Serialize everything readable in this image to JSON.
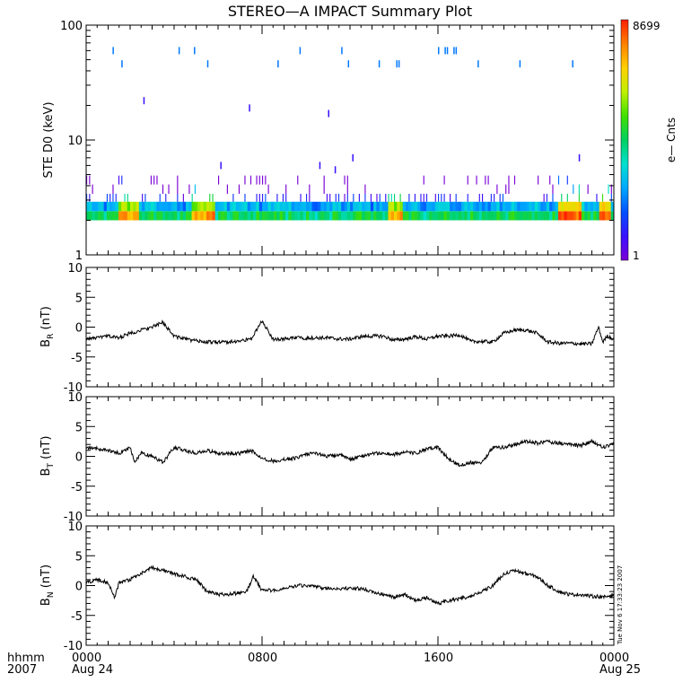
{
  "title": "STEREO—A IMPACT Summary Plot",
  "colorbar": {
    "label": "e— Cnts",
    "max_label": "8699",
    "min_label": "1",
    "colors": [
      "#7a00d6",
      "#3a10ff",
      "#0050ff",
      "#00a8ff",
      "#00e0d0",
      "#00d060",
      "#40e000",
      "#c0f000",
      "#ffd000",
      "#ff8000",
      "#ff2000"
    ]
  },
  "x_axis": {
    "row_label_1": "hhmm",
    "row_label_2": "2007",
    "ticks": [
      {
        "hour": 0,
        "time": "0000",
        "date": "Aug 24"
      },
      {
        "hour": 8,
        "time": "0800",
        "date": ""
      },
      {
        "hour": 16,
        "time": "1600",
        "date": ""
      },
      {
        "hour": 24,
        "time": "0000",
        "date": "Aug 25"
      }
    ]
  },
  "timestamp": "Tue Nov  6 17:33:23 2007",
  "chart_data": [
    {
      "type": "heatmap",
      "ylabel": "STE D0 (keV)",
      "yscale": "log",
      "ylim": [
        1,
        100
      ],
      "yticks": [
        {
          "value": 1,
          "label": "1"
        },
        {
          "value": 10,
          "label": "10"
        },
        {
          "value": 100,
          "label": "100"
        }
      ],
      "xlim": [
        0,
        24
      ],
      "color_range": [
        1,
        8699
      ],
      "energy_bins_keV": [
        2.0,
        2.4,
        2.9,
        3.4,
        4.1,
        4.9
      ],
      "sparse_counts_keV": [
        [
          1.2,
          60
        ],
        [
          1.6,
          46
        ],
        [
          2.6,
          22
        ],
        [
          4.2,
          60
        ],
        [
          4.9,
          60
        ],
        [
          5.5,
          46
        ],
        [
          6.1,
          6
        ],
        [
          7.4,
          19
        ],
        [
          8.7,
          46
        ],
        [
          9.7,
          60
        ],
        [
          10.6,
          6
        ],
        [
          11.0,
          17
        ],
        [
          11.3,
          5.5
        ],
        [
          11.6,
          60
        ],
        [
          11.9,
          46
        ],
        [
          12.1,
          7
        ],
        [
          13.3,
          46
        ],
        [
          14.1,
          46
        ],
        [
          14.2,
          46
        ],
        [
          16.0,
          60
        ],
        [
          16.3,
          60
        ],
        [
          16.4,
          60
        ],
        [
          16.7,
          60
        ],
        [
          16.8,
          60
        ],
        [
          17.8,
          46
        ],
        [
          19.7,
          46
        ],
        [
          22.1,
          46
        ],
        [
          22.4,
          7
        ]
      ],
      "hot_intervals_hours": [
        [
          1.5,
          2.4,
          3000
        ],
        [
          4.8,
          5.8,
          3500
        ],
        [
          13.8,
          14.4,
          3000
        ],
        [
          21.5,
          22.5,
          7000
        ],
        [
          23.3,
          23.9,
          8699
        ]
      ]
    },
    {
      "type": "line",
      "ylabel": "B",
      "ylabel_subscript": "R",
      "ylabel_unit": " (nT)",
      "xlim": [
        0,
        24
      ],
      "ylim": [
        -10,
        10
      ],
      "yticks": [
        {
          "value": 10,
          "label": "10"
        },
        {
          "value": 5,
          "label": "5"
        },
        {
          "value": 0,
          "label": "0"
        },
        {
          "value": -5,
          "label": "-5"
        },
        {
          "value": -10,
          "label": "-10"
        }
      ],
      "x": [
        0,
        0.5,
        1,
        1.5,
        2,
        2.5,
        3,
        3.5,
        4,
        4.5,
        5,
        5.5,
        6,
        6.5,
        7,
        7.5,
        8,
        8.5,
        9,
        9.5,
        10,
        10.5,
        11,
        11.5,
        12,
        12.5,
        13,
        13.5,
        14,
        14.5,
        15,
        15.5,
        16,
        16.5,
        17,
        17.5,
        18,
        18.5,
        19,
        19.5,
        20,
        20.5,
        21,
        21.5,
        22,
        22.5,
        23,
        23.3,
        23.5,
        23.7,
        24
      ],
      "y": [
        -2.0,
        -1.8,
        -1.5,
        -1.8,
        -1.0,
        -0.5,
        0.0,
        0.8,
        -1.5,
        -2.0,
        -2.3,
        -2.5,
        -2.5,
        -2.5,
        -2.3,
        -2.0,
        1.0,
        -2.0,
        -2.0,
        -1.8,
        -1.8,
        -1.8,
        -1.8,
        -2.0,
        -2.0,
        -1.6,
        -1.5,
        -1.5,
        -2.2,
        -2.0,
        -1.6,
        -2.0,
        -1.5,
        -1.5,
        -1.3,
        -2.4,
        -2.4,
        -2.5,
        -1.0,
        -0.5,
        -0.5,
        -1.0,
        -2.5,
        -2.7,
        -2.7,
        -2.8,
        -2.8,
        0.0,
        -2.5,
        -1.5,
        -2.0
      ],
      "title": ""
    },
    {
      "type": "line",
      "ylabel": "B",
      "ylabel_subscript": "T",
      "ylabel_unit": " (nT)",
      "xlim": [
        0,
        24
      ],
      "ylim": [
        -10,
        10
      ],
      "yticks": [
        {
          "value": 10,
          "label": "10"
        },
        {
          "value": 5,
          "label": "5"
        },
        {
          "value": 0,
          "label": "0"
        },
        {
          "value": -5,
          "label": "-5"
        },
        {
          "value": -10,
          "label": "-10"
        }
      ],
      "x": [
        0,
        0.5,
        1,
        1.5,
        2,
        2.2,
        2.5,
        3,
        3.5,
        4,
        4.5,
        5,
        5.5,
        6,
        6.5,
        7,
        7.5,
        8,
        8.5,
        9,
        9.5,
        10,
        10.5,
        11,
        11.5,
        12,
        12.5,
        13,
        13.5,
        14,
        14.5,
        15,
        15.5,
        16,
        16.5,
        17,
        17.5,
        18,
        18.5,
        19,
        19.5,
        20,
        20.5,
        21,
        21.5,
        22,
        22.5,
        23,
        23.5,
        24
      ],
      "y": [
        1.5,
        1.3,
        1.0,
        0.5,
        1.5,
        -1.0,
        0.5,
        0.0,
        -1.0,
        1.5,
        1.0,
        0.5,
        1.0,
        0.5,
        0.5,
        0.5,
        1.0,
        -0.3,
        -0.8,
        -0.5,
        -0.3,
        0.3,
        0.5,
        0.0,
        0.3,
        -0.5,
        0.0,
        0.5,
        0.5,
        0.3,
        0.7,
        0.5,
        1.2,
        1.5,
        -0.5,
        -1.5,
        -1.0,
        -1.0,
        1.5,
        1.5,
        2.0,
        2.5,
        2.2,
        2.5,
        2.2,
        2.0,
        1.8,
        2.5,
        1.5,
        2.0
      ],
      "title": ""
    },
    {
      "type": "line",
      "ylabel": "B",
      "ylabel_subscript": "N",
      "ylabel_unit": " (nT)",
      "xlim": [
        0,
        24
      ],
      "ylim": [
        -10,
        10
      ],
      "yticks": [
        {
          "value": 10,
          "label": "10"
        },
        {
          "value": 5,
          "label": "5"
        },
        {
          "value": 0,
          "label": "0"
        },
        {
          "value": -5,
          "label": "-5"
        },
        {
          "value": -10,
          "label": "-10"
        }
      ],
      "x": [
        0,
        0.5,
        1,
        1.3,
        1.5,
        2,
        2.5,
        3,
        3.5,
        4,
        4.5,
        5,
        5.5,
        6,
        6.5,
        7,
        7.3,
        7.6,
        8,
        8.5,
        9,
        9.5,
        10,
        10.5,
        11,
        11.5,
        12,
        12.5,
        13,
        13.5,
        14,
        14.5,
        15,
        15.5,
        16,
        16.5,
        17,
        17.5,
        18,
        18.5,
        19,
        19.5,
        20,
        20.5,
        21,
        21.5,
        22,
        22.5,
        23,
        23.3,
        23.5,
        24
      ],
      "y": [
        0.5,
        1.0,
        0.5,
        -2.0,
        0.5,
        1.0,
        2.0,
        3.0,
        2.5,
        2.0,
        1.5,
        1.0,
        -1.0,
        -1.5,
        -1.5,
        -1.2,
        -1.0,
        1.5,
        -0.8,
        -0.8,
        -0.5,
        0.0,
        0.0,
        -0.3,
        -0.5,
        -0.5,
        -0.5,
        -0.5,
        -1.0,
        -1.5,
        -2.0,
        -1.5,
        -2.5,
        -2.0,
        -3.0,
        -2.5,
        -2.2,
        -1.8,
        -1.0,
        0.0,
        2.0,
        2.5,
        2.0,
        1.5,
        0.0,
        -1.0,
        -1.5,
        -1.5,
        -1.8,
        -1.8,
        -2.0,
        -1.5
      ],
      "title": ""
    }
  ]
}
